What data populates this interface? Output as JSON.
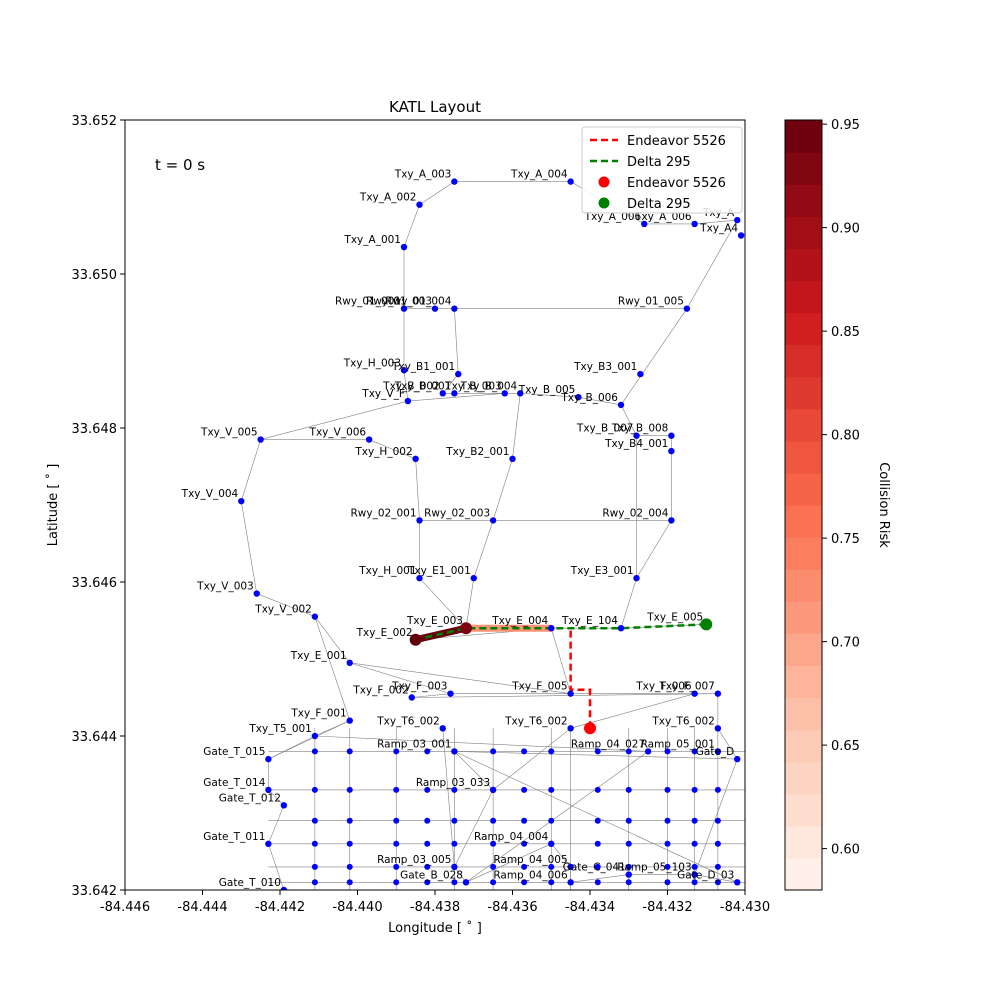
{
  "chart_data": {
    "type": "scatter",
    "title": "KATL Layout",
    "xlabel": "Longitude [$^\\circ$]",
    "ylabel": "Latitude [$^\\circ$]",
    "xlim": [
      -84.446,
      -84.43
    ],
    "ylim": [
      33.642,
      33.652
    ],
    "xticks": [
      "-84.446",
      "-84.444",
      "-84.442",
      "-84.440",
      "-84.438",
      "-84.436",
      "-84.434",
      "-84.432",
      "-84.430"
    ],
    "yticks": [
      "33.642",
      "33.644",
      "33.646",
      "33.648",
      "33.650",
      "33.652"
    ],
    "annotation": "t = 0 s",
    "colorbar": {
      "label": "Collision Risk",
      "range": [
        0.58,
        0.952
      ],
      "ticks": [
        "0.60",
        "0.65",
        "0.70",
        "0.75",
        "0.80",
        "0.85",
        "0.90",
        "0.95"
      ],
      "colormap": "Reds"
    },
    "legend": {
      "placement": "top-right",
      "entries": [
        {
          "label": "Endeavor 5526",
          "kind": "line",
          "color": "#ff0000"
        },
        {
          "label": "Delta 295",
          "kind": "line",
          "color": "#008000"
        },
        {
          "label": "Endeavor 5526",
          "kind": "marker",
          "color": "#ff0000"
        },
        {
          "label": "Delta 295",
          "kind": "marker",
          "color": "#008000"
        }
      ]
    },
    "nodes": [
      {
        "name": "Txy_A_001",
        "x": -84.4388,
        "y": 33.65035
      },
      {
        "name": "Txy_A_002",
        "x": -84.4384,
        "y": 33.6509
      },
      {
        "name": "Txy_A_003",
        "x": -84.4375,
        "y": 33.6512
      },
      {
        "name": "Txy_A_004",
        "x": -84.4345,
        "y": 33.6512
      },
      {
        "name": "Txy_A_006",
        "x": -84.4326,
        "y": 33.65065
      },
      {
        "name": "Txy_A_006",
        "x": -84.4313,
        "y": 33.65065
      },
      {
        "name": "Txy_A",
        "x": -84.4302,
        "y": 33.6507
      },
      {
        "name": "Txy_A4",
        "x": -84.4301,
        "y": 33.6505
      },
      {
        "name": "Rwy_01_001",
        "x": -84.4388,
        "y": 33.64955
      },
      {
        "name": "Rwy_01_003",
        "x": -84.438,
        "y": 33.64955
      },
      {
        "name": "Rwy_01_004",
        "x": -84.4375,
        "y": 33.64955
      },
      {
        "name": "Rwy_01_005",
        "x": -84.4315,
        "y": 33.64955
      },
      {
        "name": "Txy_H_003",
        "x": -84.4388,
        "y": 33.64875
      },
      {
        "name": "Txy_B1_001",
        "x": -84.4374,
        "y": 33.6487
      },
      {
        "name": "Txy_B3_001",
        "x": -84.4327,
        "y": 33.6487
      },
      {
        "name": "Txy_B_002",
        "x": -84.4378,
        "y": 33.64845
      },
      {
        "name": "Txy_B_001",
        "x": -84.4375,
        "y": 33.64845
      },
      {
        "name": "Txy_V_F",
        "x": -84.4387,
        "y": 33.64835
      },
      {
        "name": "Txy_B_003",
        "x": -84.4362,
        "y": 33.64845
      },
      {
        "name": "Txy_B_004",
        "x": -84.4358,
        "y": 33.64845
      },
      {
        "name": "Txy_B_005",
        "x": -84.4343,
        "y": 33.6484
      },
      {
        "name": "Txy_B_006",
        "x": -84.4332,
        "y": 33.6483
      },
      {
        "name": "Txy_B_007",
        "x": -84.4328,
        "y": 33.6479
      },
      {
        "name": "Txy_B_008",
        "x": -84.4319,
        "y": 33.6479
      },
      {
        "name": "Txy_B4_001",
        "x": -84.4319,
        "y": 33.6477
      },
      {
        "name": "Txy_V_005",
        "x": -84.4425,
        "y": 33.64785
      },
      {
        "name": "Txy_V_006",
        "x": -84.4397,
        "y": 33.64785
      },
      {
        "name": "Txy_H_002",
        "x": -84.4385,
        "y": 33.6476
      },
      {
        "name": "Txy_B2_001",
        "x": -84.436,
        "y": 33.6476
      },
      {
        "name": "Txy_V_004",
        "x": -84.443,
        "y": 33.64705
      },
      {
        "name": "Rwy_02_001",
        "x": -84.4384,
        "y": 33.6468
      },
      {
        "name": "Rwy_02_003",
        "x": -84.4365,
        "y": 33.6468
      },
      {
        "name": "Rwy_02_004",
        "x": -84.4319,
        "y": 33.6468
      },
      {
        "name": "Txy_H_001",
        "x": -84.4384,
        "y": 33.64605
      },
      {
        "name": "Txy_E1_001",
        "x": -84.437,
        "y": 33.64605
      },
      {
        "name": "Txy_E3_001",
        "x": -84.4328,
        "y": 33.64605
      },
      {
        "name": "Txy_V_003",
        "x": -84.4426,
        "y": 33.64585
      },
      {
        "name": "Txy_V_002",
        "x": -84.4411,
        "y": 33.64555
      },
      {
        "name": "Txy_E_003",
        "x": -84.4372,
        "y": 33.6454
      },
      {
        "name": "Txy_E_002",
        "x": -84.4385,
        "y": 33.64525
      },
      {
        "name": "Txy_E_004",
        "x": -84.435,
        "y": 33.6454
      },
      {
        "name": "Txy_E_104",
        "x": -84.4332,
        "y": 33.6454
      },
      {
        "name": "Txy_E_005",
        "x": -84.431,
        "y": 33.64545
      },
      {
        "name": "Txy_E_001",
        "x": -84.4402,
        "y": 33.64495
      },
      {
        "name": "Txy_F_003",
        "x": -84.4376,
        "y": 33.64455
      },
      {
        "name": "Txy_F_005",
        "x": -84.4345,
        "y": 33.64455
      },
      {
        "name": "Txy_F_006",
        "x": -84.4313,
        "y": 33.64455
      },
      {
        "name": "Txy_F_007",
        "x": -84.4307,
        "y": 33.64455
      },
      {
        "name": "Txy_F_002",
        "x": -84.4386,
        "y": 33.6445
      },
      {
        "name": "Txy_F_001",
        "x": -84.4402,
        "y": 33.6442
      },
      {
        "name": "Txy_T6_002",
        "x": -84.4378,
        "y": 33.6441
      },
      {
        "name": "Txy_T6_002",
        "x": -84.4345,
        "y": 33.6441
      },
      {
        "name": "Txy_T6_002",
        "x": -84.4307,
        "y": 33.6441
      },
      {
        "name": "Txy_T5_001",
        "x": -84.4411,
        "y": 33.644
      },
      {
        "name": "Gate_T_015",
        "x": -84.4423,
        "y": 33.6437
      },
      {
        "name": "Gate_T_014",
        "x": -84.4423,
        "y": 33.6433
      },
      {
        "name": "Gate_T_012",
        "x": -84.4419,
        "y": 33.6431
      },
      {
        "name": "Gate_T_011",
        "x": -84.4423,
        "y": 33.6426
      },
      {
        "name": "Gate_T_010",
        "x": -84.4419,
        "y": 33.642
      },
      {
        "name": "Ramp_04_027",
        "x": -84.4325,
        "y": 33.6438
      },
      {
        "name": "Ramp_05_001",
        "x": -84.4307,
        "y": 33.6438
      },
      {
        "name": "Gate_D",
        "x": -84.4302,
        "y": 33.6437
      },
      {
        "name": "Ramp_03_001",
        "x": -84.4375,
        "y": 33.6438
      },
      {
        "name": "Ramp_03_033",
        "x": -84.4365,
        "y": 33.6433
      },
      {
        "name": "Ramp_03_005",
        "x": -84.4375,
        "y": 33.6423
      },
      {
        "name": "Gate_B_028",
        "x": -84.4372,
        "y": 33.6421
      },
      {
        "name": "Ramp_04_004",
        "x": -84.435,
        "y": 33.6426
      },
      {
        "name": "Ramp_04_005",
        "x": -84.4345,
        "y": 33.6423
      },
      {
        "name": "Ramp_04_006",
        "x": -84.4345,
        "y": 33.6421
      },
      {
        "name": "Gate_C_041",
        "x": -84.433,
        "y": 33.6422
      },
      {
        "name": "Ramp_05_103",
        "x": -84.4313,
        "y": 33.6422
      },
      {
        "name": "Gate_D_03",
        "x": -84.4302,
        "y": 33.6421
      }
    ],
    "trajectories": [
      {
        "name": "Endeavor 5526",
        "x": [
          -84.434,
          -84.434,
          -84.4345,
          -84.4345
        ],
        "y": [
          33.6441,
          33.6446,
          33.6446,
          33.6454
        ]
      },
      {
        "name": "Delta 295",
        "x": [
          -84.431,
          -84.4332,
          -84.435,
          -84.4372,
          -84.4385
        ],
        "y": [
          33.64545,
          33.6454,
          33.6454,
          33.6454,
          33.64525
        ]
      }
    ],
    "aircraft": [
      {
        "name": "Endeavor 5526",
        "x": -84.434,
        "y": 33.6441,
        "color": "#ff0000"
      },
      {
        "name": "Delta 295",
        "x": -84.431,
        "y": 33.64545,
        "color": "#008000"
      }
    ],
    "risk_segments": [
      {
        "x": [
          -84.4385,
          -84.4372
        ],
        "y": [
          33.64525,
          33.6454
        ],
        "risk": 0.95
      },
      {
        "x": [
          -84.4372,
          -84.435
        ],
        "y": [
          33.6454,
          33.6454
        ],
        "risk": 0.72
      }
    ]
  }
}
